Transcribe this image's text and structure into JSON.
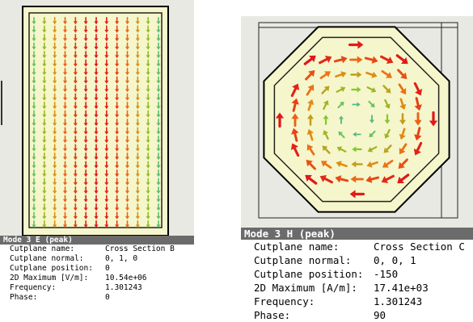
{
  "panels": [
    {
      "title": "Mode 3 E (peak)",
      "props": [
        {
          "label": "Cutplane name:",
          "value": "Cross Section B"
        },
        {
          "label": "Cutplane normal:",
          "value": "0, 1, 0"
        },
        {
          "label": "Cutplane position:",
          "value": "0"
        },
        {
          "label": "2D Maximum [V/m]:",
          "value": "10.54e+06"
        },
        {
          "label": "Frequency:",
          "value": "1.301243"
        },
        {
          "label": "Phase:",
          "value": "0"
        }
      ]
    },
    {
      "title": "Mode 3 H (peak)",
      "props": [
        {
          "label": "Cutplane name:",
          "value": "Cross Section C"
        },
        {
          "label": "Cutplane normal:",
          "value": "0, 0, 1"
        },
        {
          "label": "Cutplane position:",
          "value": "-150"
        },
        {
          "label": "2D Maximum [A/m]:",
          "value": "17.41e+03"
        },
        {
          "label": "Frequency:",
          "value": "1.301243"
        },
        {
          "label": "Phase:",
          "value": "90"
        }
      ]
    }
  ],
  "colors": {
    "plot_background": "#e9e9e3",
    "title_bar": "#6b6b6b",
    "field_low": "#2fa8d8",
    "field_mid": "#7ccc2a",
    "field_high": "#e01818"
  }
}
